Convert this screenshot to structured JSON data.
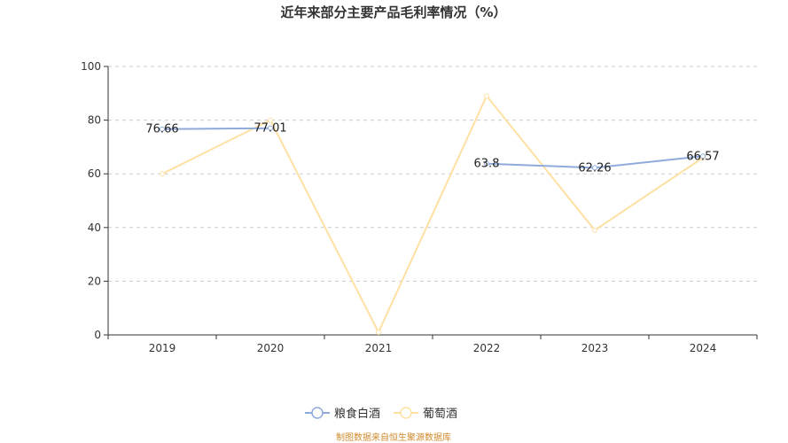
{
  "chart_data": {
    "type": "line",
    "title": "近年来部分主要产品毛利率情况（%）",
    "xlabel": "",
    "ylabel": "",
    "categories": [
      "2019",
      "2020",
      "2021",
      "2022",
      "2023",
      "2024"
    ],
    "ylim": [
      0,
      100
    ],
    "yticks": [
      0,
      20,
      40,
      60,
      80,
      100
    ],
    "grid": true,
    "legend": "bottom-center",
    "series": [
      {
        "name": "粮食白酒",
        "color": "#8faadc",
        "values": [
          76.66,
          77.01,
          null,
          63.8,
          62.26,
          66.57
        ],
        "labels": [
          "76.66",
          "77.01",
          "",
          "63.8",
          "62.26",
          "66.57"
        ]
      },
      {
        "name": "葡萄酒",
        "color": "#ffe0a3",
        "values": [
          60,
          80,
          1,
          89,
          39,
          66
        ],
        "labels": [
          "",
          "",
          "",
          "",
          "",
          ""
        ]
      }
    ]
  },
  "source_note": "制图数据来自恒生聚源数据库"
}
